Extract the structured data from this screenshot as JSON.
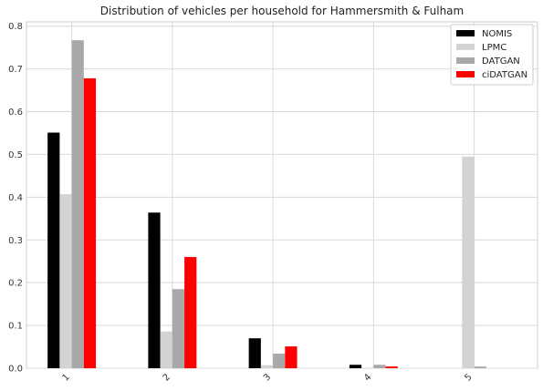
{
  "chart_data": {
    "type": "bar",
    "title": "Distribution of vehicles per household for Hammersmith & Fulham",
    "xlabel": "",
    "ylabel": "",
    "categories": [
      "1",
      "2",
      "3",
      "4",
      "5"
    ],
    "ylim": [
      0,
      0.81
    ],
    "yticks": [
      "0.0",
      "0.1",
      "0.2",
      "0.3",
      "0.4",
      "0.5",
      "0.6",
      "0.7",
      "0.8"
    ],
    "grid": true,
    "legend_position": "top-right",
    "series": [
      {
        "name": "NOMIS",
        "color": "#000000",
        "values": [
          0.551,
          0.364,
          0.07,
          0.008,
          0.0
        ]
      },
      {
        "name": "LPMC",
        "color": "#d3d3d3",
        "values": [
          0.407,
          0.086,
          0.007,
          0.001,
          0.495
        ]
      },
      {
        "name": "DATGAN",
        "color": "#a9a9a9",
        "values": [
          0.767,
          0.185,
          0.034,
          0.008,
          0.004
        ]
      },
      {
        "name": "ciDATGAN",
        "color": "#ff0000",
        "values": [
          0.678,
          0.26,
          0.051,
          0.004,
          0.0
        ]
      }
    ]
  }
}
